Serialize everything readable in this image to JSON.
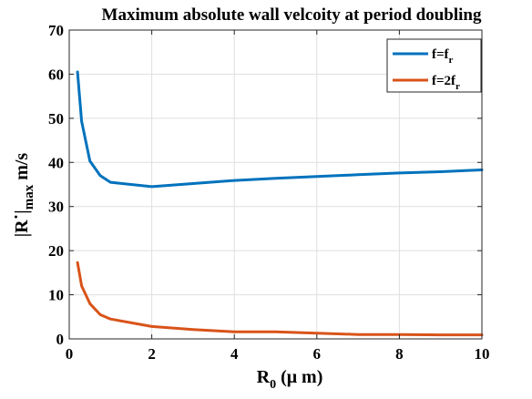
{
  "chart_data": {
    "type": "line",
    "title": "Maximum absolute wall velcoity at period doubling",
    "xlabel": {
      "base": "R",
      "sub": "0",
      "rest": " (μ m)"
    },
    "ylabel": {
      "pre": "|R",
      "prime": "˙",
      "mid": "|",
      "sub": "max",
      "rest": " m/s"
    },
    "xlim": [
      0,
      10
    ],
    "ylim": [
      0,
      70
    ],
    "xticks": [
      "0",
      "2",
      "4",
      "6",
      "8",
      "10"
    ],
    "yticks": [
      "0",
      "10",
      "20",
      "30",
      "40",
      "50",
      "60",
      "70"
    ],
    "grid": true,
    "legend_position": "top-right",
    "series": [
      {
        "name": {
          "base": "f=f",
          "sub": "r"
        },
        "color": "#0072BD",
        "x": [
          0.2,
          0.3,
          0.5,
          0.75,
          1.0,
          2.0,
          3.0,
          4.0,
          5.0,
          6.0,
          7.0,
          8.0,
          9.0,
          10.0
        ],
        "y": [
          60.5,
          49.3,
          40.3,
          37.0,
          35.5,
          34.5,
          35.2,
          35.9,
          36.4,
          36.8,
          37.2,
          37.6,
          37.9,
          38.3
        ]
      },
      {
        "name": {
          "base": "f=2f",
          "sub": "r"
        },
        "color": "#D95319",
        "x": [
          0.2,
          0.3,
          0.5,
          0.75,
          1.0,
          2.0,
          3.0,
          4.0,
          5.0,
          6.0,
          7.0,
          8.0,
          9.0,
          10.0
        ],
        "y": [
          17.3,
          12.0,
          8.0,
          5.5,
          4.5,
          2.8,
          2.1,
          1.6,
          1.6,
          1.3,
          1.0,
          1.0,
          0.9,
          0.9
        ]
      }
    ]
  }
}
